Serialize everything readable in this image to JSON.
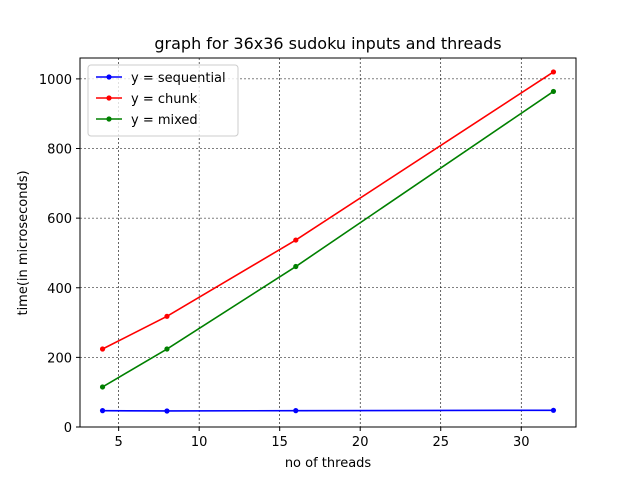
{
  "chart_data": {
    "type": "line",
    "title": "graph for 36x36 sudoku inputs and threads",
    "xlabel": "no of threads",
    "ylabel": "time(in microseconds)",
    "x": [
      4,
      8,
      16,
      32
    ],
    "xlim": [
      2.6,
      33.4
    ],
    "ylim": [
      0,
      1060
    ],
    "xticks": [
      5,
      10,
      15,
      20,
      25,
      30
    ],
    "yticks": [
      0,
      200,
      400,
      600,
      800,
      1000
    ],
    "grid": true,
    "legend_position": "upper left",
    "series": [
      {
        "name": "y = sequential",
        "color": "#0000ff",
        "values": [
          47,
          46,
          47,
          48
        ]
      },
      {
        "name": "y = chunk",
        "color": "#ff0000",
        "values": [
          224,
          318,
          537,
          1020
        ]
      },
      {
        "name": "y = mixed",
        "color": "#008000",
        "values": [
          115,
          224,
          461,
          964
        ]
      }
    ]
  }
}
